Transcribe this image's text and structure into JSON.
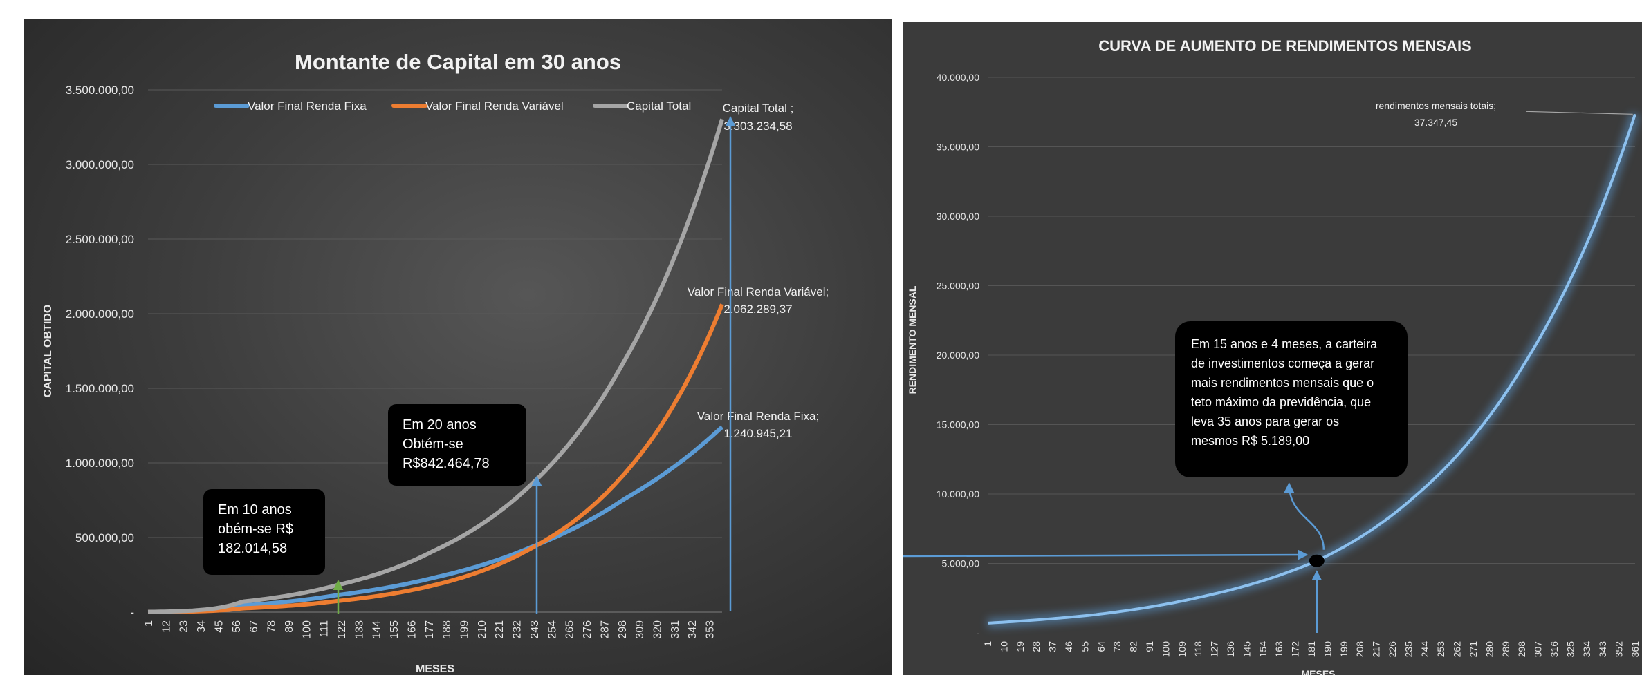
{
  "chart_data": [
    {
      "type": "line",
      "title": "Montante de Capital em 30 anos",
      "xlabel": "MESES",
      "ylabel": "CAPITAL OBTIDO",
      "ylim": [
        0,
        3500000
      ],
      "y_ticks": [
        "-",
        "500.000,00",
        "1.000.000,00",
        "1.500.000,00",
        "2.000.000,00",
        "2.500.000,00",
        "3.000.000,00",
        "3.500.000,00"
      ],
      "x_ticks": [
        "1",
        "12",
        "23",
        "34",
        "45",
        "56",
        "67",
        "78",
        "89",
        "100",
        "111",
        "122",
        "133",
        "144",
        "155",
        "166",
        "177",
        "188",
        "199",
        "210",
        "221",
        "232",
        "243",
        "254",
        "265",
        "276",
        "287",
        "298",
        "309",
        "320",
        "331",
        "342",
        "353"
      ],
      "xlim": [
        1,
        361
      ],
      "legend": "top",
      "series": [
        {
          "name": "Valor Final Renda Fixa",
          "color": "#5b9bd5",
          "x": [
            1,
            60,
            120,
            180,
            240,
            300,
            361
          ],
          "values": [
            1000,
            45000,
            115000,
            230000,
            430000,
            760000,
            1240945.21
          ]
        },
        {
          "name": "Valor Final Renda Variável",
          "color": "#ed7d31",
          "x": [
            1,
            60,
            120,
            180,
            240,
            300,
            361
          ],
          "values": [
            1000,
            25000,
            75000,
            180000,
            420000,
            930000,
            2062289.37
          ]
        },
        {
          "name": "Capital Total",
          "color": "#a5a5a5",
          "x": [
            1,
            60,
            120,
            180,
            240,
            300,
            361
          ],
          "values": [
            2000,
            70000,
            182014.58,
            410000,
            842464.78,
            1690000,
            3303234.58
          ]
        }
      ],
      "data_labels": [
        {
          "line1": "Capital Total ;",
          "line2": "3.303.234,58"
        },
        {
          "line1": "Valor Final Renda Variável;",
          "line2": "2.062.289,37"
        },
        {
          "line1": "Valor Final Renda Fixa;",
          "line2": "1.240.945,21"
        }
      ],
      "annotations": [
        {
          "lines": [
            "Em 10 anos",
            "obém-se R$",
            "182.014,58"
          ],
          "month": 120
        },
        {
          "lines": [
            "Em 20 anos",
            "Obtém-se",
            "R$842.464,78"
          ],
          "month": 240
        }
      ]
    },
    {
      "type": "line",
      "title": "CURVA DE AUMENTO DE RENDIMENTOS MENSAIS",
      "xlabel": "MESES",
      "ylabel": "RENDIMENTO MENSAL",
      "ylim": [
        0,
        40000
      ],
      "y_ticks": [
        "-",
        "5.000,00",
        "10.000,00",
        "15.000,00",
        "20.000,00",
        "25.000,00",
        "30.000,00",
        "35.000,00",
        "40.000,00"
      ],
      "x_ticks": [
        "1",
        "10",
        "19",
        "28",
        "37",
        "46",
        "55",
        "64",
        "73",
        "82",
        "91",
        "100",
        "109",
        "118",
        "127",
        "136",
        "145",
        "154",
        "163",
        "172",
        "181",
        "190",
        "199",
        "208",
        "217",
        "226",
        "235",
        "244",
        "253",
        "262",
        "271",
        "280",
        "289",
        "298",
        "307",
        "316",
        "325",
        "334",
        "343",
        "352",
        "361"
      ],
      "xlim": [
        1,
        361
      ],
      "series": [
        {
          "name": "rendimentos mensais totais",
          "color": "#5b9bd5",
          "x": [
            1,
            60,
            120,
            184,
            240,
            300,
            361
          ],
          "values": [
            700,
            1300,
            2600,
            5189,
            10000,
            19500,
            37347.45
          ]
        }
      ],
      "data_labels": [
        {
          "line1": "rendimentos mensais totais;",
          "line2": "37.347,45"
        }
      ],
      "annotations": [
        {
          "lines": [
            "Em 15 anos e 4 meses, a carteira",
            "de investimentos começa a gerar",
            "mais rendimentos mensais que o",
            "teto máximo da previdência, que",
            "leva 35 anos para gerar os",
            "mesmos R$ 5.189,00"
          ],
          "month": 184,
          "value": 5189
        }
      ]
    }
  ]
}
